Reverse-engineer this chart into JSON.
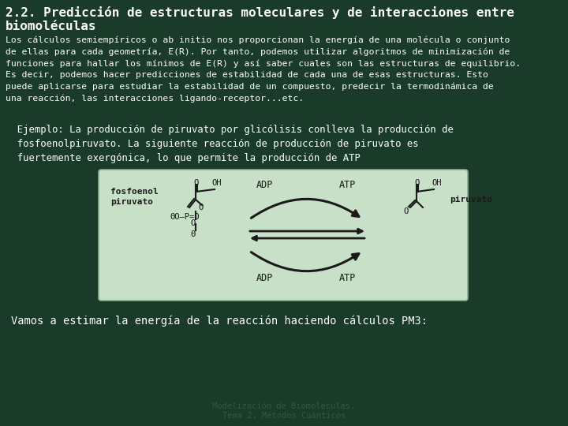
{
  "background_color": "#1a3a2a",
  "title_line1": "2.2. Predicción de estructuras moleculares y de interacciones entre",
  "title_line2": "biomoléculas",
  "title_color": "#ffffff",
  "title_fontsize": 11.5,
  "body_text": "Los cálculos semiempíricos o ab initio nos proporcionan la energía de una molécula o conjunto\nde ellas para cada geometría, E(R). Por tanto, podemos utilizar algoritmos de minimización de\nfunciones para hallar los mínimos de E(R) y así saber cuales son las estructuras de equilibrio.\nEs decir, podemos hacer predicciones de estabilidad de cada una de esas estructuras. Esto\npuede aplicarse para estudiar la estabilidad de un compuesto, predecir la termodinámica de\nuna reacción, las interacciones ligando-receptor...etc.",
  "body_color": "#ffffff",
  "body_fontsize": 8.2,
  "example_text": "  Ejemplo: La producción de piruvato por glicólisis conlleva la producción de\n  fosfoenolpiruvato. La siguiente reacción de producción de piruvato es\n  fuertemente exergónica, lo que permite la producción de ATP",
  "example_fontsize": 8.8,
  "box_bg": "#c8dfc8",
  "box_edge": "#8aaa8a",
  "label_left": "fosfoenol\npiruvato",
  "label_right": "piruvato",
  "adp_label": "ADP",
  "atp_label": "ATP",
  "struct_color": "#1a1a1a",
  "struct_fontsize": 7.5,
  "vamos_text": "Vamos a estimar la energía de la reacción haciendo cálculos PM3:",
  "vamos_fontsize": 9.8,
  "footer1": "Modelización de Biomoléculas.",
  "footer2": "Tema 2. Métodos Cuánticos",
  "footer_color": "#2d5c3d",
  "footer_fontsize": 7.5,
  "mono_font": "monospace"
}
